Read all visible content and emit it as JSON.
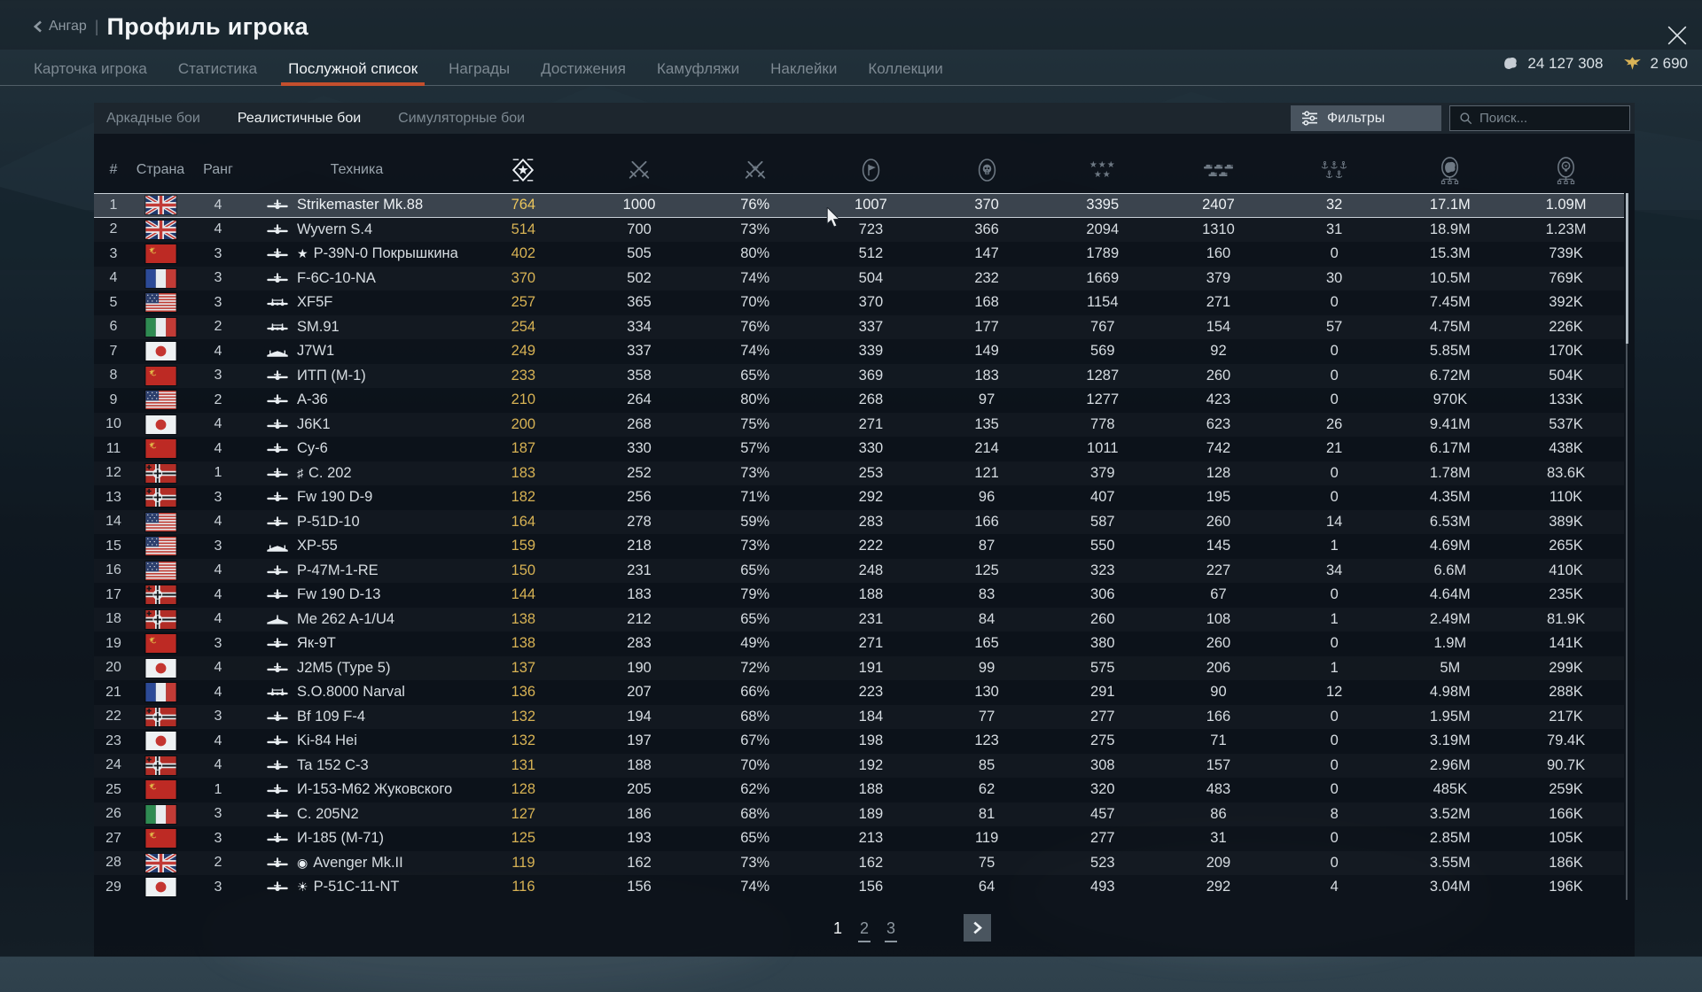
{
  "window": {
    "back_label": "Ангар",
    "title": "Профиль игрока"
  },
  "currencies": {
    "silver_lions": "24 127 308",
    "golden_eagles": "2 690"
  },
  "tabs": [
    {
      "id": "player-card",
      "label": "Карточка игрока",
      "active": false
    },
    {
      "id": "statistics",
      "label": "Статистика",
      "active": false
    },
    {
      "id": "service-record",
      "label": "Послужной список",
      "active": true
    },
    {
      "id": "awards",
      "label": "Награды",
      "active": false
    },
    {
      "id": "achievements",
      "label": "Достижения",
      "active": false
    },
    {
      "id": "camouflages",
      "label": "Камуфляжи",
      "active": false
    },
    {
      "id": "decals",
      "label": "Наклейки",
      "active": false
    },
    {
      "id": "collections",
      "label": "Коллекции",
      "active": false
    }
  ],
  "sub_tabs": [
    {
      "id": "arcade",
      "label": "Аркадные бои",
      "active": false
    },
    {
      "id": "realistic",
      "label": "Реалистичные бои",
      "active": true
    },
    {
      "id": "simulator",
      "label": "Симуляторные бои",
      "active": false
    }
  ],
  "filters": {
    "button_label": "Фильтры",
    "search_placeholder": "Поиск..."
  },
  "table": {
    "text_columns": [
      {
        "id": "num",
        "label": "#"
      },
      {
        "id": "country",
        "label": "Страна"
      },
      {
        "id": "rank",
        "label": "Ранг"
      },
      {
        "id": "vehicle",
        "label": "Техника"
      }
    ],
    "stat_columns": [
      {
        "name": "victories-column-icon",
        "icon": "victory",
        "active": true
      },
      {
        "name": "battles-column-icon",
        "icon": "swords",
        "active": false
      },
      {
        "name": "winrate-column-icon",
        "icon": "swordstar",
        "active": false
      },
      {
        "name": "sorties-column-icon",
        "icon": "flagoval",
        "active": false
      },
      {
        "name": "deaths-column-icon",
        "icon": "skulloval",
        "active": false
      },
      {
        "name": "air-targets-column-icon",
        "icon": "stars",
        "active": false
      },
      {
        "name": "ground-targets-column-icon",
        "icon": "tanks",
        "active": false
      },
      {
        "name": "naval-targets-column-icon",
        "icon": "anchors",
        "active": false
      },
      {
        "name": "silver-lions-column-icon",
        "icon": "lion",
        "active": false
      },
      {
        "name": "research-points-column-icon",
        "icon": "rp",
        "active": false
      }
    ],
    "rows": [
      {
        "num": 1,
        "country": "uk",
        "rank": 4,
        "prefix": "",
        "vehicle": "Strikemaster Mk.88",
        "icon": "f",
        "selected": true,
        "stats": [
          "764",
          "1000",
          "76%",
          "1007",
          "370",
          "3395",
          "2407",
          "32",
          "17.1M",
          "1.09M"
        ]
      },
      {
        "num": 2,
        "country": "uk",
        "rank": 4,
        "prefix": "",
        "vehicle": "Wyvern S.4",
        "icon": "f",
        "stats": [
          "514",
          "700",
          "73%",
          "723",
          "366",
          "2094",
          "1310",
          "31",
          "18.9M",
          "1.23M"
        ]
      },
      {
        "num": 3,
        "country": "ussr",
        "rank": 3,
        "prefix": "★",
        "vehicle": "P-39N-0 Покрышкина",
        "icon": "f",
        "stats": [
          "402",
          "505",
          "80%",
          "512",
          "147",
          "1789",
          "160",
          "0",
          "15.3M",
          "739K"
        ]
      },
      {
        "num": 4,
        "country": "france",
        "rank": 3,
        "prefix": "",
        "vehicle": "F-6C-10-NA",
        "icon": "f",
        "stats": [
          "370",
          "502",
          "74%",
          "504",
          "232",
          "1669",
          "379",
          "30",
          "10.5M",
          "769K"
        ]
      },
      {
        "num": 5,
        "country": "usa",
        "rank": 3,
        "prefix": "",
        "vehicle": "XF5F",
        "icon": "t",
        "stats": [
          "257",
          "365",
          "70%",
          "370",
          "168",
          "1154",
          "271",
          "0",
          "7.45M",
          "392K"
        ]
      },
      {
        "num": 6,
        "country": "italy",
        "rank": 2,
        "prefix": "",
        "vehicle": "SM.91",
        "icon": "t",
        "stats": [
          "254",
          "334",
          "76%",
          "337",
          "177",
          "767",
          "154",
          "57",
          "4.75M",
          "226K"
        ]
      },
      {
        "num": 7,
        "country": "japan",
        "rank": 4,
        "prefix": "",
        "vehicle": "J7W1",
        "icon": "c",
        "stats": [
          "249",
          "337",
          "74%",
          "339",
          "149",
          "569",
          "92",
          "0",
          "5.85M",
          "170K"
        ]
      },
      {
        "num": 8,
        "country": "ussr",
        "rank": 3,
        "prefix": "",
        "vehicle": "ИТП (М-1)",
        "icon": "f",
        "stats": [
          "233",
          "358",
          "65%",
          "369",
          "183",
          "1287",
          "260",
          "0",
          "6.72M",
          "504K"
        ]
      },
      {
        "num": 9,
        "country": "usa",
        "rank": 2,
        "prefix": "",
        "vehicle": "A-36",
        "icon": "f",
        "stats": [
          "210",
          "264",
          "80%",
          "268",
          "97",
          "1277",
          "423",
          "0",
          "970K",
          "133K"
        ]
      },
      {
        "num": 10,
        "country": "japan",
        "rank": 4,
        "prefix": "",
        "vehicle": "J6K1",
        "icon": "f",
        "stats": [
          "200",
          "268",
          "75%",
          "271",
          "135",
          "778",
          "623",
          "26",
          "9.41M",
          "537K"
        ]
      },
      {
        "num": 11,
        "country": "ussr",
        "rank": 4,
        "prefix": "",
        "vehicle": "Су-6",
        "icon": "f",
        "stats": [
          "187",
          "330",
          "57%",
          "330",
          "214",
          "1011",
          "742",
          "21",
          "6.17M",
          "438K"
        ]
      },
      {
        "num": 12,
        "country": "germany",
        "rank": 1,
        "prefix": "♯",
        "vehicle": "С. 202",
        "icon": "f",
        "stats": [
          "183",
          "252",
          "73%",
          "253",
          "121",
          "379",
          "128",
          "0",
          "1.78M",
          "83.6K"
        ]
      },
      {
        "num": 13,
        "country": "germany",
        "rank": 3,
        "prefix": "",
        "vehicle": "Fw 190 D-9",
        "icon": "f",
        "stats": [
          "182",
          "256",
          "71%",
          "292",
          "96",
          "407",
          "195",
          "0",
          "4.35M",
          "110K"
        ]
      },
      {
        "num": 14,
        "country": "usa",
        "rank": 4,
        "prefix": "",
        "vehicle": "P-51D-10",
        "icon": "f",
        "stats": [
          "164",
          "278",
          "59%",
          "283",
          "166",
          "587",
          "260",
          "14",
          "6.53M",
          "389K"
        ]
      },
      {
        "num": 15,
        "country": "usa",
        "rank": 3,
        "prefix": "",
        "vehicle": "XP-55",
        "icon": "c",
        "stats": [
          "159",
          "218",
          "73%",
          "222",
          "87",
          "550",
          "145",
          "1",
          "4.69M",
          "265K"
        ]
      },
      {
        "num": 16,
        "country": "usa",
        "rank": 4,
        "prefix": "",
        "vehicle": "P-47M-1-RE",
        "icon": "f",
        "stats": [
          "150",
          "231",
          "65%",
          "248",
          "125",
          "323",
          "227",
          "34",
          "6.6M",
          "410K"
        ]
      },
      {
        "num": 17,
        "country": "germany",
        "rank": 4,
        "prefix": "",
        "vehicle": "Fw 190 D-13",
        "icon": "f",
        "stats": [
          "144",
          "183",
          "79%",
          "188",
          "83",
          "306",
          "67",
          "0",
          "4.64M",
          "235K"
        ]
      },
      {
        "num": 18,
        "country": "germany",
        "rank": 4,
        "prefix": "",
        "vehicle": "Me 262 A-1/U4",
        "icon": "j",
        "stats": [
          "138",
          "212",
          "65%",
          "231",
          "84",
          "260",
          "108",
          "1",
          "2.49M",
          "81.9K"
        ]
      },
      {
        "num": 19,
        "country": "ussr",
        "rank": 3,
        "prefix": "",
        "vehicle": "Як-9Т",
        "icon": "f",
        "stats": [
          "138",
          "283",
          "49%",
          "271",
          "165",
          "380",
          "260",
          "0",
          "1.9M",
          "141K"
        ]
      },
      {
        "num": 20,
        "country": "japan",
        "rank": 4,
        "prefix": "",
        "vehicle": "J2M5 (Type 5)",
        "icon": "f",
        "stats": [
          "137",
          "190",
          "72%",
          "191",
          "99",
          "575",
          "206",
          "1",
          "5M",
          "299K"
        ]
      },
      {
        "num": 21,
        "country": "france",
        "rank": 4,
        "prefix": "",
        "vehicle": "S.O.8000 Narval",
        "icon": "t",
        "stats": [
          "136",
          "207",
          "66%",
          "223",
          "130",
          "291",
          "90",
          "12",
          "4.98M",
          "288K"
        ]
      },
      {
        "num": 22,
        "country": "germany",
        "rank": 3,
        "prefix": "",
        "vehicle": "Bf 109 F-4",
        "icon": "f",
        "stats": [
          "132",
          "194",
          "68%",
          "184",
          "77",
          "277",
          "166",
          "0",
          "1.95M",
          "217K"
        ]
      },
      {
        "num": 23,
        "country": "japan",
        "rank": 4,
        "prefix": "",
        "vehicle": "Ki-84 Hei",
        "icon": "f",
        "stats": [
          "132",
          "197",
          "67%",
          "198",
          "123",
          "275",
          "71",
          "0",
          "3.19M",
          "79.4K"
        ]
      },
      {
        "num": 24,
        "country": "germany",
        "rank": 4,
        "prefix": "",
        "vehicle": "Ta 152 C-3",
        "icon": "f",
        "stats": [
          "131",
          "188",
          "70%",
          "192",
          "85",
          "308",
          "157",
          "0",
          "2.96M",
          "90.7K"
        ]
      },
      {
        "num": 25,
        "country": "ussr",
        "rank": 1,
        "prefix": "",
        "vehicle": "И-153-М62 Жуковского",
        "icon": "f",
        "stats": [
          "128",
          "205",
          "62%",
          "188",
          "62",
          "320",
          "483",
          "0",
          "485K",
          "259K"
        ]
      },
      {
        "num": 26,
        "country": "italy",
        "rank": 3,
        "prefix": "",
        "vehicle": "C. 205N2",
        "icon": "f",
        "stats": [
          "127",
          "186",
          "68%",
          "189",
          "81",
          "457",
          "86",
          "8",
          "3.52M",
          "166K"
        ]
      },
      {
        "num": 27,
        "country": "ussr",
        "rank": 3,
        "prefix": "",
        "vehicle": "И-185 (М-71)",
        "icon": "f",
        "stats": [
          "125",
          "193",
          "65%",
          "213",
          "119",
          "277",
          "31",
          "0",
          "2.85M",
          "105K"
        ]
      },
      {
        "num": 28,
        "country": "uk",
        "rank": 2,
        "prefix": "◉",
        "vehicle": "Avenger Mk.II",
        "icon": "f",
        "stats": [
          "119",
          "162",
          "73%",
          "162",
          "75",
          "523",
          "209",
          "0",
          "3.55M",
          "186K"
        ]
      },
      {
        "num": 29,
        "country": "japan",
        "rank": 3,
        "prefix": "☀",
        "vehicle": "P-51C-11-NT",
        "icon": "f",
        "stats": [
          "116",
          "156",
          "74%",
          "156",
          "64",
          "493",
          "292",
          "4",
          "3.04M",
          "196K"
        ]
      }
    ]
  },
  "pagination": {
    "pages": [
      "1",
      "2",
      "3"
    ],
    "current": "1"
  },
  "colors": {
    "accent": "#c44f2d",
    "gold_stat": "#d7b254",
    "selected_row": "#3b444e",
    "panel": "#0c1219"
  }
}
